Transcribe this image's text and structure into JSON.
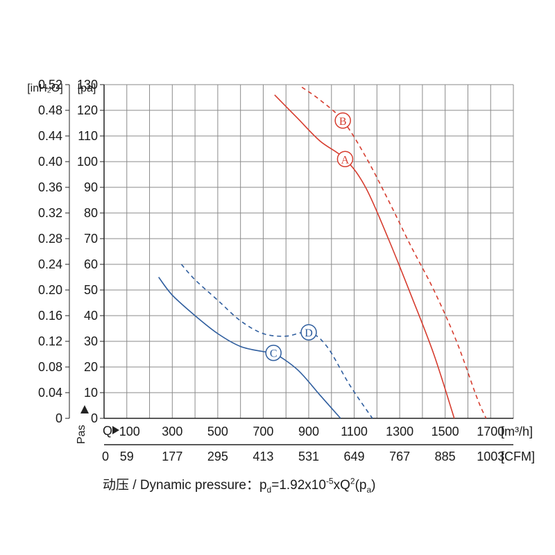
{
  "chart_data": {
    "type": "line",
    "title": "",
    "y_axis": {
      "unit_left": "[inH₂O]",
      "unit_right": "[pa]",
      "label_vertical": "Pas",
      "min": 0,
      "max": 130,
      "step": 10,
      "pa_ticks": [
        "0",
        "10",
        "20",
        "30",
        "40",
        "50",
        "60",
        "70",
        "80",
        "90",
        "100",
        "110",
        "120",
        "130"
      ],
      "inh2o_ticks": [
        "0",
        "0.04",
        "0.08",
        "0.12",
        "0.16",
        "0.20",
        "0.24",
        "0.28",
        "0.32",
        "0.36",
        "0.40",
        "0.44",
        "0.48",
        "0.52"
      ]
    },
    "x_axis": {
      "prefix": "Q",
      "unit_m3h": "[m³/h]",
      "unit_cfm": "[CFM]",
      "min": 0,
      "max": 1800,
      "m3h_ticks": [
        {
          "v": 100,
          "label": "100"
        },
        {
          "v": 300,
          "label": "300"
        },
        {
          "v": 500,
          "label": "500"
        },
        {
          "v": 700,
          "label": "700"
        },
        {
          "v": 900,
          "label": "900"
        },
        {
          "v": 1100,
          "label": "1100"
        },
        {
          "v": 1300,
          "label": "1300"
        },
        {
          "v": 1500,
          "label": "1500"
        },
        {
          "v": 1700,
          "label": "1700"
        }
      ],
      "cfm_ticks": [
        {
          "v": 0,
          "label": "0"
        },
        {
          "v": 100,
          "label": "59"
        },
        {
          "v": 300,
          "label": "177"
        },
        {
          "v": 500,
          "label": "295"
        },
        {
          "v": 700,
          "label": "413"
        },
        {
          "v": 900,
          "label": "531"
        },
        {
          "v": 1100,
          "label": "649"
        },
        {
          "v": 1300,
          "label": "767"
        },
        {
          "v": 1500,
          "label": "885"
        },
        {
          "v": 1700,
          "label": "1003"
        }
      ]
    },
    "series": [
      {
        "name": "A",
        "color": "#d63c2e",
        "dash": false,
        "label_at": [
          1060,
          101
        ],
        "points": [
          [
            750,
            126
          ],
          [
            850,
            117
          ],
          [
            950,
            108
          ],
          [
            1060,
            101
          ],
          [
            1150,
            90
          ],
          [
            1250,
            70
          ],
          [
            1350,
            48
          ],
          [
            1450,
            25
          ],
          [
            1540,
            0
          ]
        ]
      },
      {
        "name": "B",
        "color": "#d63c2e",
        "dash": true,
        "label_at": [
          1050,
          116
        ],
        "points": [
          [
            870,
            129
          ],
          [
            950,
            124
          ],
          [
            1050,
            116
          ],
          [
            1150,
            102
          ],
          [
            1250,
            85
          ],
          [
            1350,
            67
          ],
          [
            1450,
            50
          ],
          [
            1550,
            30
          ],
          [
            1640,
            8
          ],
          [
            1680,
            0
          ]
        ]
      },
      {
        "name": "C",
        "color": "#2e5d9e",
        "dash": false,
        "label_at": [
          745,
          25.5
        ],
        "points": [
          [
            240,
            55
          ],
          [
            300,
            48
          ],
          [
            400,
            40
          ],
          [
            500,
            33
          ],
          [
            600,
            28
          ],
          [
            700,
            26
          ],
          [
            745,
            25.5
          ],
          [
            850,
            19
          ],
          [
            950,
            9
          ],
          [
            1040,
            0
          ]
        ]
      },
      {
        "name": "D",
        "color": "#2e5d9e",
        "dash": true,
        "label_at": [
          900,
          33.5
        ],
        "points": [
          [
            340,
            60
          ],
          [
            400,
            54
          ],
          [
            500,
            46
          ],
          [
            600,
            38
          ],
          [
            700,
            33
          ],
          [
            800,
            32
          ],
          [
            900,
            33.5
          ],
          [
            980,
            28
          ],
          [
            1080,
            13
          ],
          [
            1180,
            0
          ]
        ]
      }
    ]
  },
  "formula": {
    "prefix": "动压 / Dynamic pressure：",
    "p": "p",
    "p_sub": "d",
    "mid": "=1.92x10",
    "exp": "-5",
    "xq": "xQ",
    "q_exp": "2",
    "open": "(p",
    "pa_sub": "a",
    "close": ")"
  }
}
